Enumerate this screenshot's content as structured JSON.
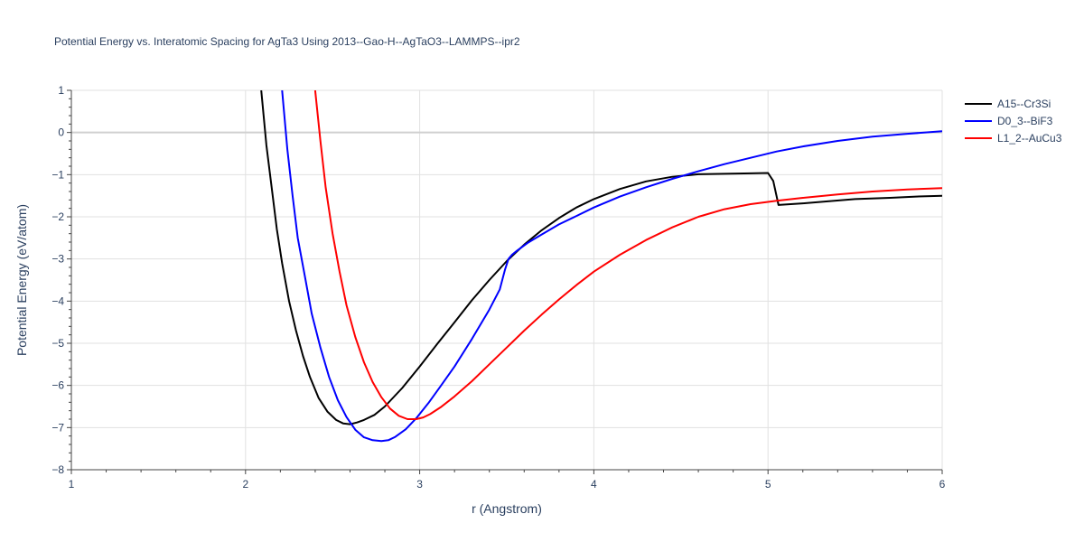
{
  "chart_data": {
    "type": "line",
    "title": "Potential Energy vs. Interatomic Spacing for AgTa3 Using 2013--Gao-H--AgTaO3--LAMMPS--ipr2",
    "xlabel": "r (Angstrom)",
    "ylabel": "Potential Energy (eV/atom)",
    "xlim": [
      1,
      6
    ],
    "ylim": [
      -8,
      1
    ],
    "xticks": [
      1,
      2,
      3,
      4,
      5,
      6
    ],
    "xtick_labels": [
      "1",
      "2",
      "3",
      "4",
      "5",
      "6"
    ],
    "yticks": [
      1,
      0,
      -1,
      -2,
      -3,
      -4,
      -5,
      -6,
      -7,
      -8
    ],
    "ytick_labels": [
      "1",
      "0",
      "−1",
      "−2",
      "−3",
      "−4",
      "−5",
      "−6",
      "−7",
      "−8"
    ],
    "grid": true,
    "legend_position": "top-right",
    "series": [
      {
        "name": "A15--Cr3Si",
        "color": "#000000",
        "x": [
          2.09,
          2.12,
          2.15,
          2.18,
          2.21,
          2.25,
          2.29,
          2.33,
          2.37,
          2.42,
          2.47,
          2.52,
          2.56,
          2.6,
          2.64,
          2.68,
          2.74,
          2.8,
          2.9,
          3.0,
          3.1,
          3.2,
          3.3,
          3.4,
          3.5,
          3.6,
          3.7,
          3.8,
          3.9,
          4.0,
          4.15,
          4.3,
          4.45,
          4.6,
          4.75,
          4.9,
          5.0,
          5.03,
          5.06,
          5.2,
          5.35,
          5.5,
          5.7,
          5.85,
          6.0
        ],
        "y": [
          1.0,
          -0.3,
          -1.3,
          -2.3,
          -3.1,
          -4.0,
          -4.7,
          -5.3,
          -5.8,
          -6.3,
          -6.62,
          -6.82,
          -6.9,
          -6.92,
          -6.88,
          -6.82,
          -6.7,
          -6.5,
          -6.06,
          -5.55,
          -5.02,
          -4.5,
          -3.98,
          -3.5,
          -3.05,
          -2.66,
          -2.32,
          -2.03,
          -1.78,
          -1.58,
          -1.34,
          -1.16,
          -1.05,
          -0.99,
          -0.98,
          -0.97,
          -0.96,
          -1.15,
          -1.72,
          -1.68,
          -1.63,
          -1.58,
          -1.55,
          -1.52,
          -1.5
        ]
      },
      {
        "name": "D0_3--BiF3",
        "color": "#0000ff",
        "x": [
          2.21,
          2.24,
          2.27,
          2.3,
          2.34,
          2.38,
          2.43,
          2.48,
          2.53,
          2.58,
          2.63,
          2.68,
          2.73,
          2.78,
          2.82,
          2.86,
          2.92,
          2.98,
          3.05,
          3.12,
          3.2,
          3.3,
          3.4,
          3.46,
          3.49,
          3.51,
          3.53,
          3.56,
          3.62,
          3.7,
          3.8,
          3.9,
          4.0,
          4.15,
          4.3,
          4.45,
          4.6,
          4.75,
          4.9,
          5.05,
          5.2,
          5.4,
          5.6,
          5.8,
          6.0
        ],
        "y": [
          1.0,
          -0.4,
          -1.5,
          -2.5,
          -3.4,
          -4.3,
          -5.1,
          -5.8,
          -6.35,
          -6.75,
          -7.05,
          -7.23,
          -7.3,
          -7.32,
          -7.3,
          -7.22,
          -7.04,
          -6.78,
          -6.42,
          -6.02,
          -5.55,
          -4.9,
          -4.2,
          -3.72,
          -3.25,
          -3.0,
          -2.9,
          -2.8,
          -2.62,
          -2.42,
          -2.18,
          -1.98,
          -1.78,
          -1.52,
          -1.3,
          -1.1,
          -0.92,
          -0.75,
          -0.6,
          -0.45,
          -0.33,
          -0.2,
          -0.1,
          -0.03,
          0.03
        ]
      },
      {
        "name": "L1_2--AuCu3",
        "color": "#ff0000",
        "x": [
          2.4,
          2.43,
          2.46,
          2.5,
          2.54,
          2.58,
          2.63,
          2.68,
          2.73,
          2.78,
          2.83,
          2.88,
          2.93,
          2.98,
          3.02,
          3.06,
          3.12,
          3.2,
          3.3,
          3.4,
          3.5,
          3.6,
          3.7,
          3.8,
          3.9,
          4.0,
          4.15,
          4.3,
          4.45,
          4.6,
          4.75,
          4.9,
          5.05,
          5.2,
          5.4,
          5.6,
          5.8,
          6.0
        ],
        "y": [
          1.0,
          -0.2,
          -1.3,
          -2.4,
          -3.3,
          -4.1,
          -4.85,
          -5.45,
          -5.92,
          -6.28,
          -6.55,
          -6.72,
          -6.8,
          -6.8,
          -6.76,
          -6.68,
          -6.52,
          -6.26,
          -5.9,
          -5.5,
          -5.1,
          -4.7,
          -4.32,
          -3.96,
          -3.62,
          -3.3,
          -2.9,
          -2.55,
          -2.25,
          -2.0,
          -1.82,
          -1.7,
          -1.62,
          -1.55,
          -1.47,
          -1.4,
          -1.35,
          -1.32
        ]
      }
    ]
  }
}
